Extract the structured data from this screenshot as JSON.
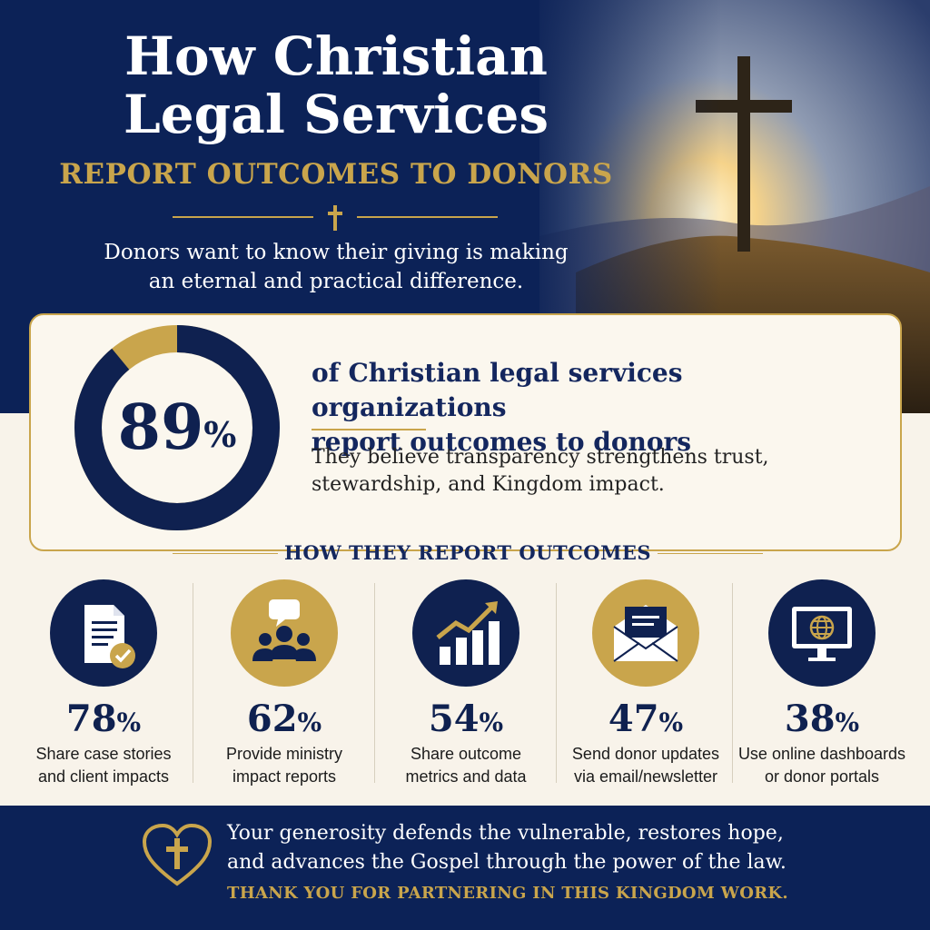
{
  "header": {
    "title_line1": "How Christian",
    "title_line2": "Legal Services",
    "subtitle": "REPORT OUTCOMES TO DONORS",
    "intro_line1": "Donors want to know their giving is making",
    "intro_line2": "an eternal and practical difference."
  },
  "stat": {
    "value": "89",
    "unit": "%",
    "percent": 89,
    "headline_line1": "of Christian legal services organizations",
    "headline_line2": "report outcomes to donors",
    "body_line1": "They believe transparency strengthens trust,",
    "body_line2": "stewardship, and Kingdom impact."
  },
  "section": {
    "title": "HOW THEY REPORT OUTCOMES"
  },
  "methods": [
    {
      "value": "78",
      "unit": "%",
      "label_line1": "Share case stories",
      "label_line2": "and client impacts",
      "icon": "document-check-icon"
    },
    {
      "value": "62",
      "unit": "%",
      "label_line1": "Provide ministry",
      "label_line2": "impact reports",
      "icon": "group-speech-icon"
    },
    {
      "value": "54",
      "unit": "%",
      "label_line1": "Share outcome",
      "label_line2": "metrics and data",
      "icon": "bar-chart-growth-icon"
    },
    {
      "value": "47",
      "unit": "%",
      "label_line1": "Send donor updates",
      "label_line2": "via email/newsletter",
      "icon": "envelope-icon"
    },
    {
      "value": "38",
      "unit": "%",
      "label_line1": "Use online dashboards",
      "label_line2": "or donor portals",
      "icon": "monitor-globe-icon"
    }
  ],
  "footer": {
    "line1": "Your generosity defends the vulnerable, restores hope,",
    "line2": "and advances the Gospel through the power of the law.",
    "thanks": "THANK YOU FOR PARTNERING IN THIS KINGDOM WORK."
  },
  "colors": {
    "navy": "#0c2257",
    "gold": "#c9a54c",
    "cream": "#f8f3ea"
  }
}
